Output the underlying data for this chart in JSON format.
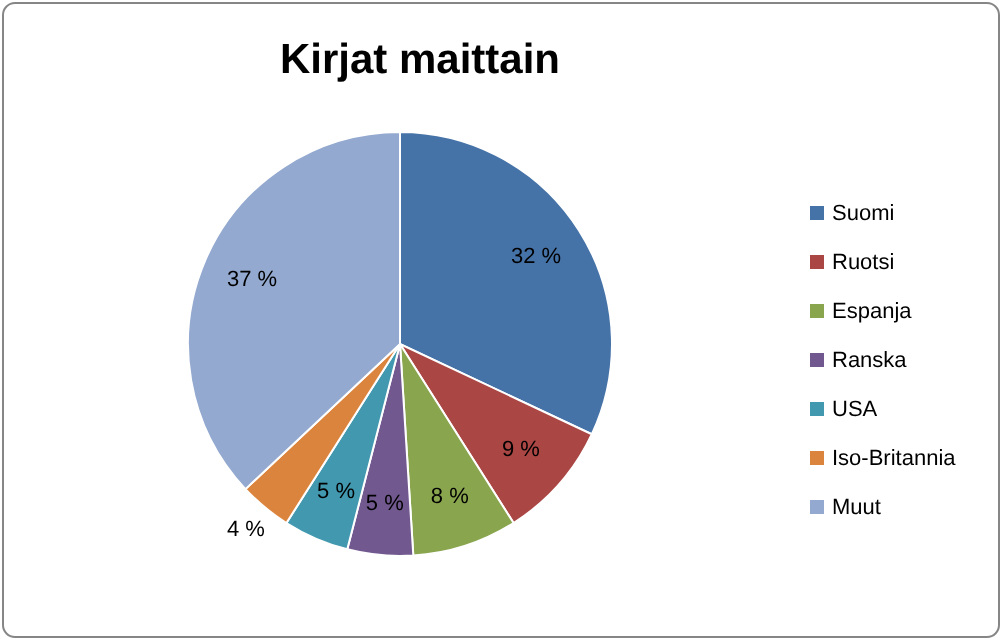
{
  "chart_data": {
    "type": "pie",
    "title": "Kirjat maittain",
    "categories": [
      "Suomi",
      "Ruotsi",
      "Espanja",
      "Ranska",
      "USA",
      "Iso-Britannia",
      "Muut"
    ],
    "values": [
      32,
      9,
      8,
      5,
      5,
      4,
      37
    ],
    "colors": [
      "#4572A7",
      "#AA4643",
      "#89A54E",
      "#71588F",
      "#4198AF",
      "#DB843D",
      "#93A9CF"
    ],
    "value_labels": [
      "32 %",
      "9 %",
      "8 %",
      "5 %",
      "5 %",
      "4 %",
      "37 %"
    ],
    "legend": "right"
  }
}
